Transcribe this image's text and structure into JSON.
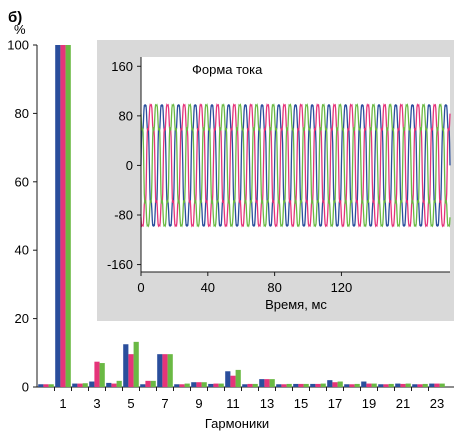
{
  "panel_label": "б)",
  "chart_data": [
    {
      "type": "bar",
      "ylabel": "%",
      "xlabel": "Гармоники",
      "ylim": [
        0,
        100
      ],
      "yticks": [
        0,
        20,
        40,
        60,
        80,
        100
      ],
      "xticks": [
        "1",
        "3",
        "5",
        "7",
        "9",
        "11",
        "13",
        "15",
        "17",
        "19",
        "21",
        "23"
      ],
      "harmonics": [
        0,
        1,
        2,
        3,
        4,
        5,
        6,
        7,
        8,
        9,
        10,
        11,
        12,
        13,
        14,
        15,
        16,
        17,
        18,
        19,
        20,
        21,
        22,
        23
      ],
      "series": [
        {
          "name": "",
          "color": "#2a4e9c",
          "values": [
            0.8,
            100,
            1.0,
            1.6,
            1.2,
            12.5,
            0.8,
            9.6,
            0.8,
            1.4,
            0.9,
            4.6,
            0.8,
            2.3,
            0.8,
            0.9,
            0.9,
            2.0,
            0.8,
            1.6,
            0.8,
            1.0,
            0.8,
            1.0
          ]
        },
        {
          "name": "",
          "color": "#e5347a",
          "values": [
            0.8,
            100,
            1.0,
            7.4,
            1.0,
            9.6,
            1.8,
            9.6,
            0.8,
            1.4,
            1.0,
            3.3,
            0.9,
            2.3,
            0.8,
            0.9,
            0.9,
            1.4,
            0.8,
            1.0,
            0.8,
            0.9,
            0.8,
            1.0
          ]
        },
        {
          "name": "",
          "color": "#6ab944",
          "values": [
            0.8,
            100,
            1.1,
            7.0,
            1.8,
            13.2,
            1.8,
            9.6,
            1.0,
            1.4,
            1.0,
            5.0,
            0.9,
            2.3,
            0.9,
            0.9,
            1.0,
            1.6,
            0.9,
            1.0,
            0.9,
            1.0,
            0.9,
            1.0
          ]
        }
      ],
      "grid": false
    },
    {
      "type": "line",
      "title": "Форма тока",
      "xlabel": "Время, мс",
      "ylabel": "",
      "xlim": [
        0,
        185
      ],
      "ylim": [
        -172,
        175
      ],
      "xticks": [
        0,
        40,
        80,
        120
      ],
      "yticks": [
        160,
        80,
        0,
        -80,
        -160
      ],
      "signal": {
        "fundamental_hz": 100,
        "amplitude_1": 100,
        "harmonic_3": 7,
        "harmonic_5": 13,
        "harmonic_7": 9.6,
        "sample_step_ms": 0.25
      },
      "series": [
        {
          "name": "",
          "color": "#2a4e9c",
          "phase_deg": 0
        },
        {
          "name": "",
          "color": "#e5347a",
          "phase_deg": -120
        },
        {
          "name": "",
          "color": "#6ab944",
          "phase_deg": 120
        }
      ],
      "grid": false
    }
  ]
}
